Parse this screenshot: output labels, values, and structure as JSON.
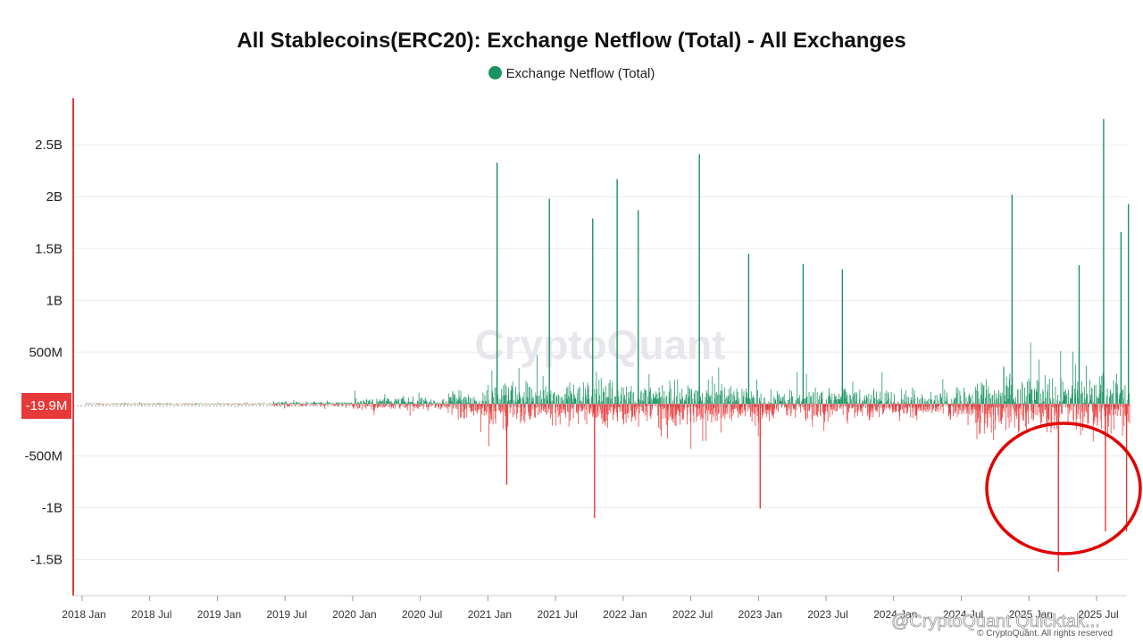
{
  "chart_data": {
    "type": "bar",
    "title": "All Stablecoins(ERC20): Exchange Netflow (Total) - All Exchanges",
    "series": [
      {
        "name": "Exchange Netflow (Total)"
      }
    ],
    "xlabel": "",
    "ylabel": "",
    "y_ticks": [
      {
        "value": 2500000000,
        "label": "2.5B"
      },
      {
        "value": 2000000000,
        "label": "2B"
      },
      {
        "value": 1500000000,
        "label": "1.5B"
      },
      {
        "value": 1000000000,
        "label": "1B"
      },
      {
        "value": 500000000,
        "label": "500M"
      },
      {
        "value": -500000000,
        "label": "-500M"
      },
      {
        "value": -1000000000,
        "label": "-1B"
      },
      {
        "value": -1500000000,
        "label": "-1.5B"
      }
    ],
    "x_ticks": [
      "2018 Jan",
      "2018 Jul",
      "2019 Jan",
      "2019 Jul",
      "2020 Jan",
      "2020 Jul",
      "2021 Jan",
      "2021 Jul",
      "2022 Jan",
      "2022 Jul",
      "2023 Jan",
      "2023 Jul",
      "2024 Jan",
      "2024 Jul",
      "2025 Jan",
      "2025 Jul"
    ],
    "ylim": [
      -1850000000,
      2950000000
    ],
    "x_range": [
      "2018-01-01",
      "2025-09-30"
    ],
    "current_value": {
      "value": -19900000,
      "label": "-19.9M"
    },
    "grid": true,
    "legend_position": "top-center",
    "positive_color": "#1a9262",
    "negative_color": "#e8393a",
    "highlighted_spikes": {
      "inflows": [
        {
          "date": "2021-01-25",
          "value": 2330000000
        },
        {
          "date": "2021-06-15",
          "value": 1980000000
        },
        {
          "date": "2021-10-10",
          "value": 1790000000
        },
        {
          "date": "2021-12-15",
          "value": 2170000000
        },
        {
          "date": "2022-02-10",
          "value": 1870000000
        },
        {
          "date": "2022-07-25",
          "value": 2410000000
        },
        {
          "date": "2022-12-05",
          "value": 1450000000
        },
        {
          "date": "2023-05-01",
          "value": 1350000000
        },
        {
          "date": "2023-08-15",
          "value": 1300000000
        },
        {
          "date": "2024-11-15",
          "value": 2020000000
        },
        {
          "date": "2025-05-15",
          "value": 1340000000
        },
        {
          "date": "2025-07-20",
          "value": 2750000000
        },
        {
          "date": "2025-09-05",
          "value": 1660000000
        },
        {
          "date": "2025-09-25",
          "value": 1930000000
        }
      ],
      "outflows": [
        {
          "date": "2021-02-20",
          "value": -780000000
        },
        {
          "date": "2021-10-15",
          "value": -1100000000
        },
        {
          "date": "2023-01-05",
          "value": -1010000000
        },
        {
          "date": "2025-03-20",
          "value": -1620000000
        },
        {
          "date": "2025-07-25",
          "value": -1230000000
        },
        {
          "date": "2025-09-20",
          "value": -1230000000
        }
      ]
    },
    "annotations": [
      {
        "shape": "circle",
        "color": "#e00000",
        "around": "2025 outflows"
      }
    ],
    "watermark": "CryptoQuant",
    "credit": "© CryptoQuant. All rights reserved",
    "overlay_text": "@CryptoQuant Quicktak..."
  }
}
